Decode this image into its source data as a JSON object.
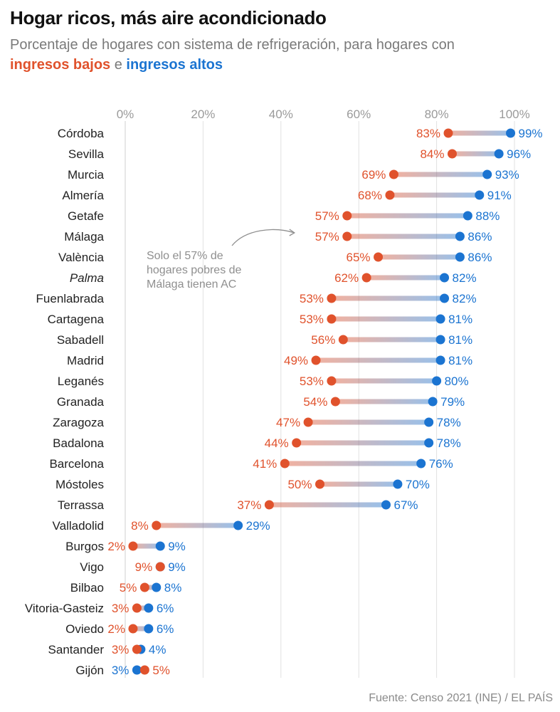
{
  "title": "Hogar ricos, más aire acondicionado",
  "subtitle": {
    "prefix": "Porcentaje de hogares con sistema de refrigeración, para hogares con",
    "low_label": "ingresos bajos",
    "connector": "e",
    "high_label": "ingresos altos"
  },
  "source": "Fuente: Censo 2021 (INE) / EL PAÍS",
  "colors": {
    "low": "#e0522c",
    "high": "#1b74d1",
    "grid": "#e2e2e2",
    "axis_text": "#9a9a9a",
    "label": "#222222",
    "annotation": "#8f8f8f"
  },
  "chart_data": {
    "type": "dumbbell",
    "x_tick_labels": [
      "0%",
      "20%",
      "40%",
      "60%",
      "80%",
      "100%"
    ],
    "x_ticks": [
      0,
      20,
      40,
      60,
      80,
      100
    ],
    "xlim": [
      0,
      100
    ],
    "categories": [
      "Córdoba",
      "Sevilla",
      "Murcia",
      "Almería",
      "Getafe",
      "Málaga",
      "València",
      "Palma",
      "Fuenlabrada",
      "Cartagena",
      "Sabadell",
      "Madrid",
      "Leganés",
      "Granada",
      "Zaragoza",
      "Badalona",
      "Barcelona",
      "Móstoles",
      "Terrassa",
      "Valladolid",
      "Burgos",
      "Vigo",
      "Bilbao",
      "Vitoria-Gasteiz",
      "Oviedo",
      "Santander",
      "Gijón"
    ],
    "series": [
      {
        "name": "ingresos bajos",
        "values": [
          83,
          84,
          69,
          68,
          57,
          57,
          65,
          62,
          53,
          53,
          56,
          49,
          53,
          54,
          47,
          44,
          41,
          50,
          37,
          8,
          2,
          9,
          5,
          3,
          2,
          3,
          5
        ]
      },
      {
        "name": "ingresos altos",
        "values": [
          99,
          96,
          93,
          91,
          88,
          86,
          86,
          82,
          82,
          81,
          81,
          81,
          80,
          79,
          78,
          78,
          76,
          70,
          67,
          29,
          9,
          9,
          8,
          6,
          6,
          4,
          3
        ]
      }
    ],
    "annotation": {
      "lines": [
        "Solo el 57% de",
        "hogares pobres de",
        "Málaga tienen AC"
      ],
      "target_category": "Málaga"
    }
  }
}
